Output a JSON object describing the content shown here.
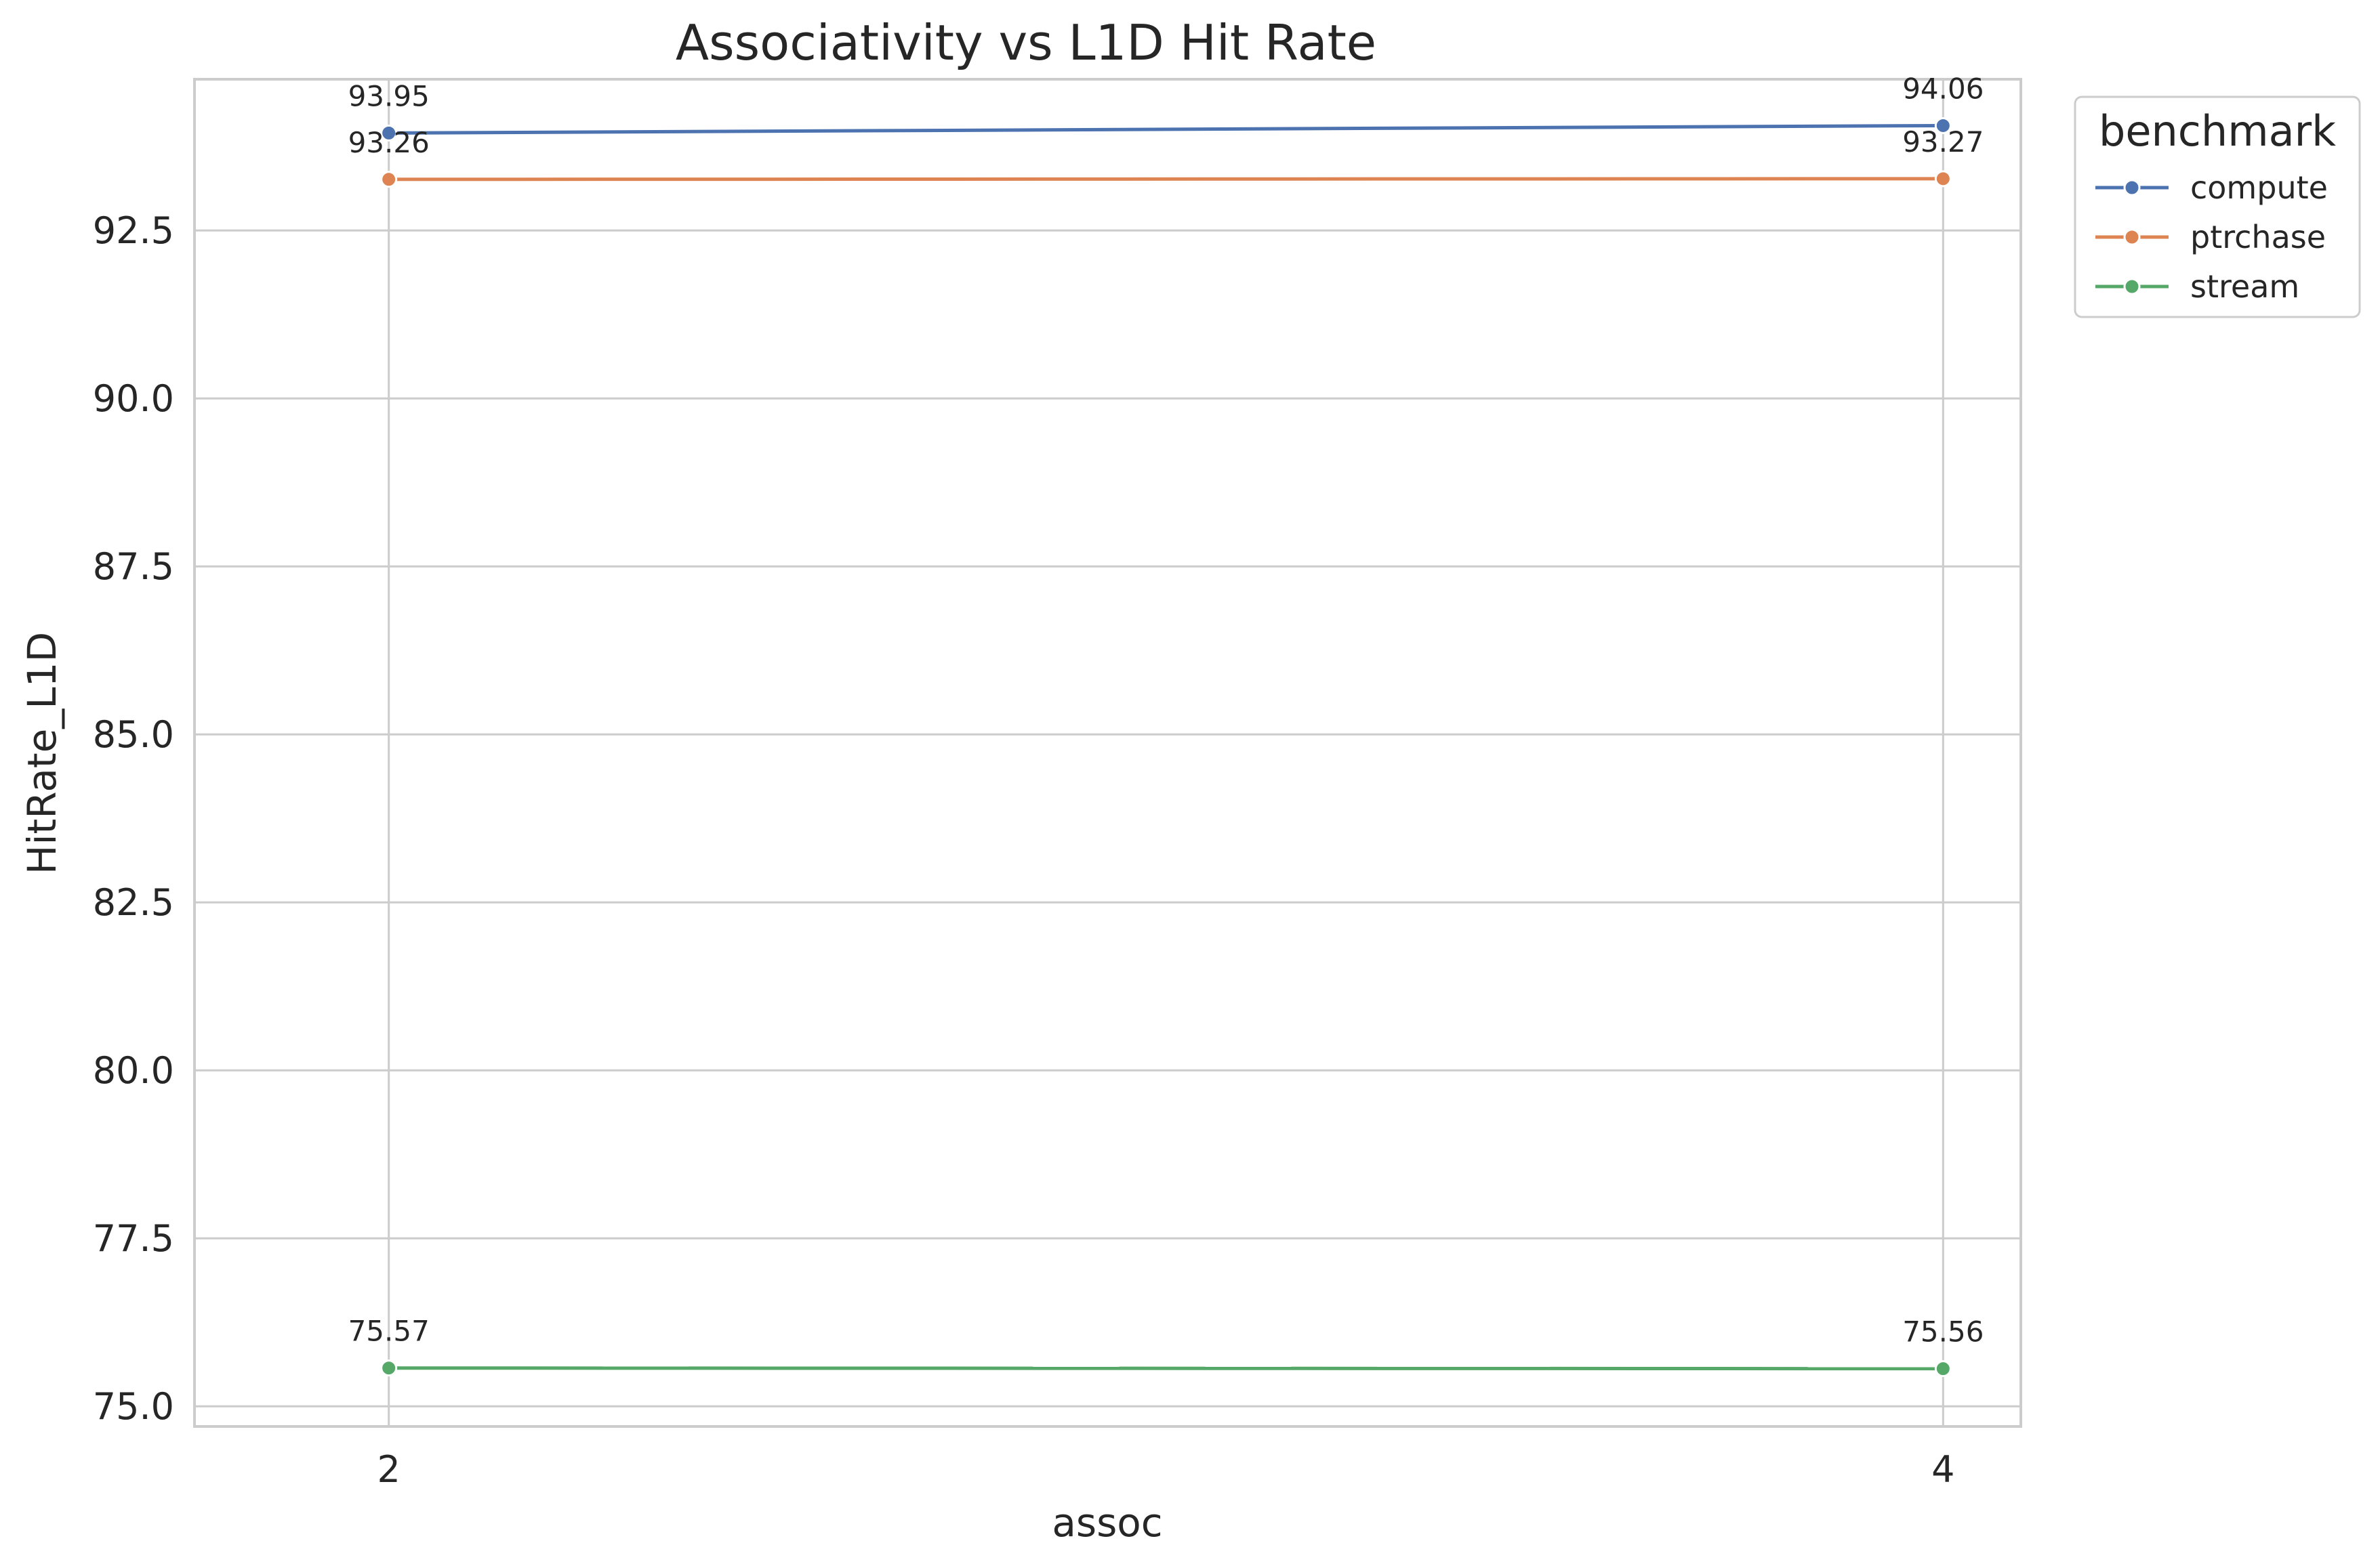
{
  "chart_data": {
    "type": "line",
    "title": "Associativity vs L1D Hit Rate",
    "xlabel": "assoc",
    "ylabel": "HitRate_L1D",
    "x": [
      2,
      4
    ],
    "x_tick_labels": [
      "2",
      "4"
    ],
    "xlim": [
      1.75,
      4.1
    ],
    "ylim": [
      74.7,
      94.75
    ],
    "y_ticks": [
      75.0,
      77.5,
      80.0,
      82.5,
      85.0,
      87.5,
      90.0,
      92.5
    ],
    "y_tick_labels": [
      "75.0",
      "77.5",
      "80.0",
      "82.5",
      "85.0",
      "87.5",
      "90.0",
      "92.5"
    ],
    "grid": true,
    "legend": {
      "title": "benchmark",
      "placement": "outside-top-right"
    },
    "series": [
      {
        "name": "compute",
        "color": "#4c72b0",
        "values": [
          93.95,
          94.06
        ],
        "labels": [
          "93.95",
          "94.06"
        ]
      },
      {
        "name": "ptrchase",
        "color": "#dd8452",
        "values": [
          93.26,
          93.27
        ],
        "labels": [
          "93.26",
          "93.27"
        ]
      },
      {
        "name": "stream",
        "color": "#55a868",
        "values": [
          75.57,
          75.56
        ],
        "labels": [
          "75.57",
          "75.56"
        ]
      }
    ]
  }
}
